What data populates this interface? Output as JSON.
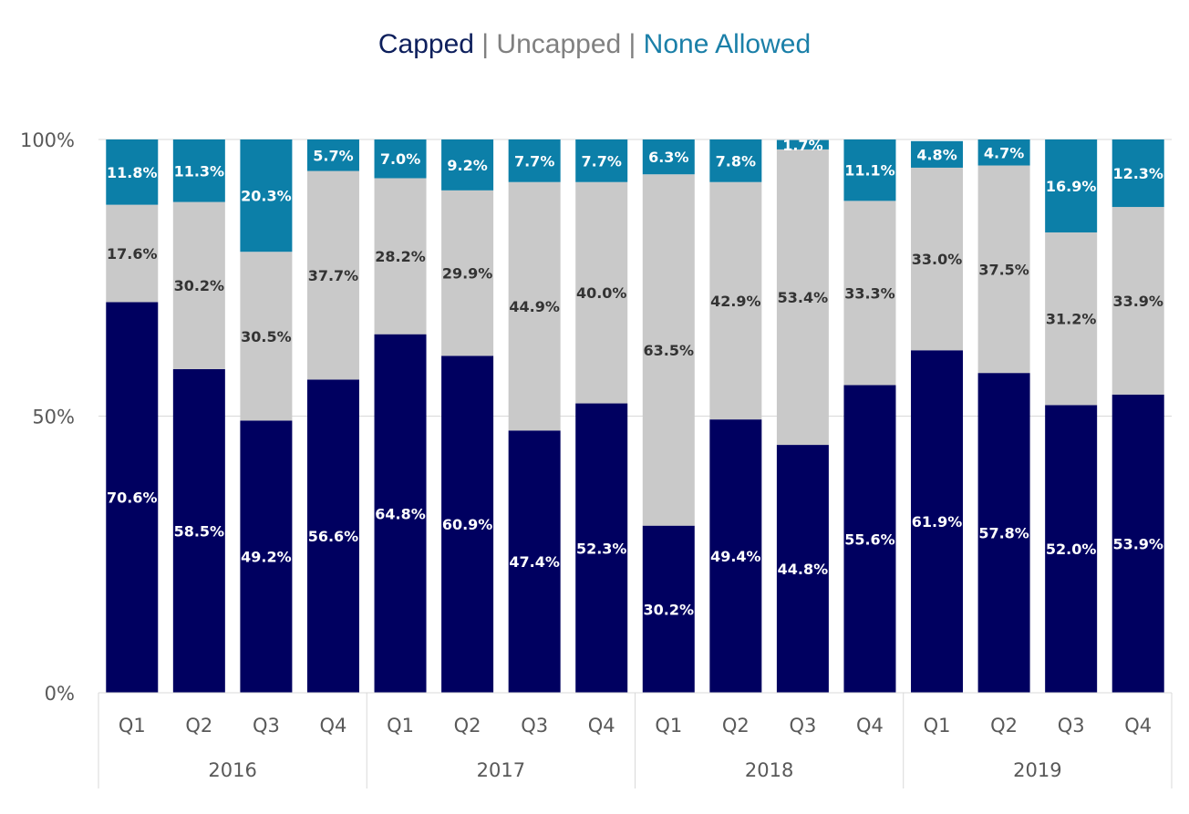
{
  "chart_data": {
    "type": "bar",
    "stacked": true,
    "percent_stacked": true,
    "title_parts": [
      {
        "text": "Capped",
        "color": "#0d1f5c"
      },
      {
        "text": " | ",
        "color": "#808080"
      },
      {
        "text": "Uncapped",
        "color": "#808080"
      },
      {
        "text": " | ",
        "color": "#808080"
      },
      {
        "text": "None Allowed",
        "color": "#1a7fa8"
      }
    ],
    "categories": [
      "Q1",
      "Q2",
      "Q3",
      "Q4",
      "Q1",
      "Q2",
      "Q3",
      "Q4",
      "Q1",
      "Q2",
      "Q3",
      "Q4",
      "Q1",
      "Q2",
      "Q3",
      "Q4"
    ],
    "groups": [
      {
        "label": "2016",
        "count": 4
      },
      {
        "label": "2017",
        "count": 4
      },
      {
        "label": "2018",
        "count": 4
      },
      {
        "label": "2019",
        "count": 4
      }
    ],
    "series": [
      {
        "name": "Capped",
        "color": "#000060",
        "label_color": "#ffffff",
        "values": [
          70.6,
          58.5,
          49.2,
          56.6,
          64.8,
          60.9,
          47.4,
          52.3,
          30.2,
          49.4,
          44.8,
          55.6,
          61.9,
          57.8,
          52.0,
          53.9
        ],
        "labels": [
          "70.6%",
          "58.5%",
          "49.2%",
          "56.6%",
          "64.8%",
          "60.9%",
          "47.4%",
          "52.3%",
          "30.2%",
          "49.4%",
          "44.8%",
          "55.6%",
          "61.9%",
          "57.8%",
          "52.0%",
          "53.9%"
        ]
      },
      {
        "name": "Uncapped",
        "color": "#c9c9c9",
        "label_color": "#333333",
        "values": [
          17.6,
          30.2,
          30.5,
          37.7,
          28.2,
          29.9,
          44.9,
          40.0,
          63.5,
          42.9,
          53.4,
          33.3,
          33.0,
          37.5,
          31.2,
          33.9
        ],
        "labels": [
          "17.6%",
          "30.2%",
          "30.5%",
          "37.7%",
          "28.2%",
          "29.9%",
          "44.9%",
          "40.0%",
          "63.5%",
          "42.9%",
          "53.4%",
          "33.3%",
          "33.0%",
          "37.5%",
          "31.2%",
          "33.9%"
        ]
      },
      {
        "name": "None Allowed",
        "color": "#0c7fa8",
        "label_color": "#ffffff",
        "values": [
          11.8,
          11.3,
          20.3,
          5.7,
          7.0,
          9.2,
          7.7,
          7.7,
          6.3,
          7.8,
          1.7,
          11.1,
          4.8,
          4.7,
          16.9,
          12.3
        ],
        "labels": [
          "11.8%",
          "11.3%",
          "20.3%",
          "5.7%",
          "7.0%",
          "9.2%",
          "7.7%",
          "7.7%",
          "6.3%",
          "7.8%",
          "1.7%",
          "11.1%",
          "4.8%",
          "4.7%",
          "16.9%",
          "12.3%"
        ]
      }
    ],
    "y_ticks": [
      "0%",
      "50%",
      "100%"
    ],
    "ylim": [
      0,
      100
    ],
    "grid": true,
    "legend": "title"
  }
}
